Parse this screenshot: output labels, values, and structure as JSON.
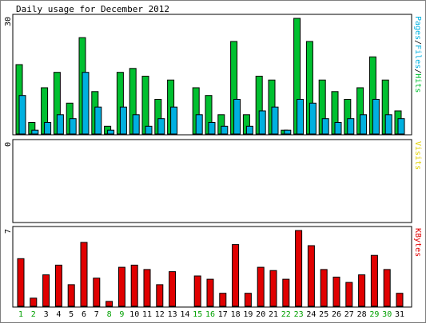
{
  "title": "Daily usage for December 2012",
  "colors": {
    "hits": "#00c030",
    "files": "#00b0e0",
    "visits": "#e0d000",
    "kbytes": "#e00000",
    "weekend": "#00a000",
    "text": "#000000",
    "panel_border": "#000000"
  },
  "chart_data": [
    {
      "type": "bar",
      "panel": "pages-files-hits",
      "y_axis_max_label": "30",
      "ylim": [
        0,
        30
      ],
      "right_label": {
        "parts": [
          {
            "text": "Pages",
            "color": "#00b0e0"
          },
          {
            "text": "/",
            "color": "#000000"
          },
          {
            "text": "Files",
            "color": "#00b0e0"
          },
          {
            "text": "/",
            "color": "#000000"
          },
          {
            "text": "Hits",
            "color": "#00c030"
          }
        ]
      },
      "categories": [
        "1",
        "2",
        "3",
        "4",
        "5",
        "6",
        "7",
        "8",
        "9",
        "10",
        "11",
        "12",
        "13",
        "14",
        "15",
        "16",
        "17",
        "18",
        "19",
        "20",
        "21",
        "22",
        "23",
        "24",
        "25",
        "26",
        "27",
        "28",
        "29",
        "30",
        "31"
      ],
      "series": [
        {
          "name": "Hits",
          "color": "#00c030",
          "values": [
            18,
            3,
            12,
            16,
            8,
            25,
            11,
            2,
            16,
            17,
            15,
            9,
            14,
            0,
            12,
            10,
            5,
            24,
            5,
            15,
            14,
            1,
            30,
            24,
            14,
            11,
            9,
            12,
            20,
            14,
            6
          ]
        },
        {
          "name": "Files",
          "color": "#00b0e0",
          "values": [
            10,
            1,
            3,
            5,
            4,
            16,
            7,
            1,
            7,
            5,
            2,
            4,
            7,
            0,
            5,
            3,
            2,
            9,
            2,
            6,
            7,
            1,
            9,
            8,
            4,
            3,
            4,
            5,
            9,
            5,
            4
          ]
        },
        {
          "name": "Pages",
          "color": "#00b0e0",
          "values": [
            0,
            0,
            0,
            0,
            0,
            0,
            0,
            0,
            0,
            0,
            0,
            0,
            0,
            0,
            0,
            0,
            0,
            0,
            0,
            0,
            0,
            0,
            0,
            0,
            0,
            0,
            0,
            0,
            0,
            0,
            0
          ]
        }
      ]
    },
    {
      "type": "bar",
      "panel": "visits",
      "y_axis_max_label": "0",
      "ylim": [
        0,
        1
      ],
      "right_label": {
        "parts": [
          {
            "text": "Visits",
            "color": "#e0d000"
          }
        ]
      },
      "categories": [
        "1",
        "2",
        "3",
        "4",
        "5",
        "6",
        "7",
        "8",
        "9",
        "10",
        "11",
        "12",
        "13",
        "14",
        "15",
        "16",
        "17",
        "18",
        "19",
        "20",
        "21",
        "22",
        "23",
        "24",
        "25",
        "26",
        "27",
        "28",
        "29",
        "30",
        "31"
      ],
      "series": [
        {
          "name": "Visits",
          "color": "#e0d000",
          "values": [
            0,
            0,
            0,
            0,
            0,
            0,
            0,
            0,
            0,
            0,
            0,
            0,
            0,
            0,
            0,
            0,
            0,
            0,
            0,
            0,
            0,
            0,
            0,
            0,
            0,
            0,
            0,
            0,
            0,
            0,
            0
          ]
        }
      ]
    },
    {
      "type": "bar",
      "panel": "kbytes",
      "y_axis_max_label": "7",
      "ylim": [
        0,
        7
      ],
      "right_label": {
        "parts": [
          {
            "text": "KBytes",
            "color": "#e00000"
          }
        ]
      },
      "categories": [
        "1",
        "2",
        "3",
        "4",
        "5",
        "6",
        "7",
        "8",
        "9",
        "10",
        "11",
        "12",
        "13",
        "14",
        "15",
        "16",
        "17",
        "18",
        "19",
        "20",
        "21",
        "22",
        "23",
        "24",
        "25",
        "26",
        "27",
        "28",
        "29",
        "30",
        "31"
      ],
      "weekend_days": [
        "1",
        "2",
        "8",
        "9",
        "15",
        "16",
        "22",
        "23",
        "29",
        "30"
      ],
      "series": [
        {
          "name": "KBytes",
          "color": "#e00000",
          "values": [
            4.4,
            0.75,
            2.9,
            3.8,
            2.0,
            5.9,
            2.6,
            0.45,
            3.6,
            3.8,
            3.4,
            2.0,
            3.2,
            0,
            2.8,
            2.5,
            1.2,
            5.7,
            1.2,
            3.6,
            3.3,
            2.5,
            7.0,
            5.6,
            3.4,
            2.7,
            2.2,
            2.9,
            4.7,
            3.4,
            1.2
          ]
        }
      ]
    }
  ]
}
